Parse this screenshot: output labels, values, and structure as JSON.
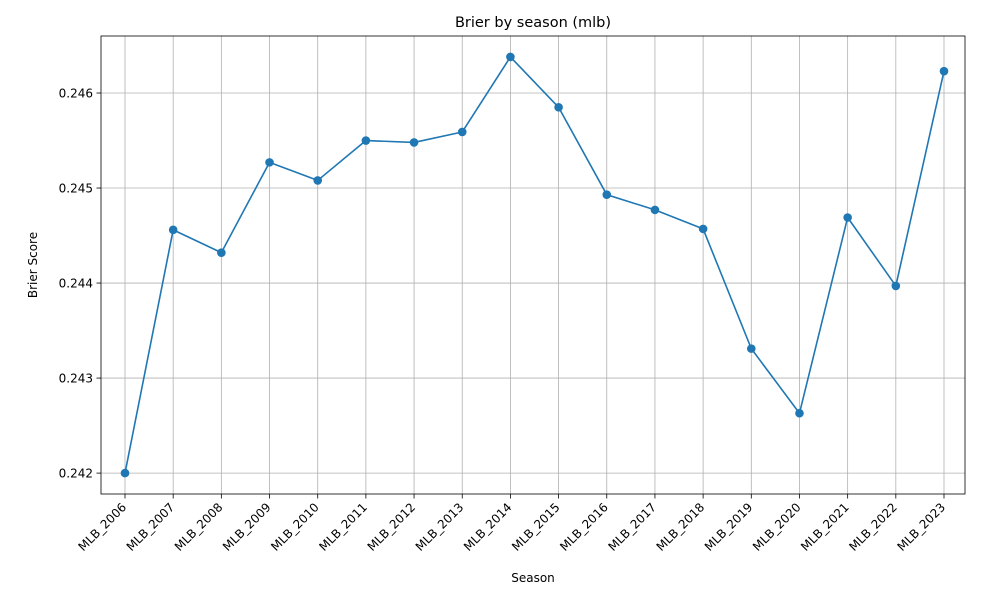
{
  "chart_data": {
    "type": "line",
    "title": "Brier by season (mlb)",
    "xlabel": "Season",
    "ylabel": "Brier Score",
    "categories": [
      "MLB_2006",
      "MLB_2007",
      "MLB_2008",
      "MLB_2009",
      "MLB_2010",
      "MLB_2011",
      "MLB_2012",
      "MLB_2013",
      "MLB_2014",
      "MLB_2015",
      "MLB_2016",
      "MLB_2017",
      "MLB_2018",
      "MLB_2019",
      "MLB_2020",
      "MLB_2021",
      "MLB_2022",
      "MLB_2023"
    ],
    "series": [
      {
        "values": [
          0.242,
          0.24456,
          0.24432,
          0.24527,
          0.24508,
          0.2455,
          0.24548,
          0.24559,
          0.24638,
          0.24585,
          0.24493,
          0.24477,
          0.24457,
          0.24331,
          0.24263,
          0.24469,
          0.24397,
          0.24623
        ],
        "color": "#1f77b4",
        "marker": "circle"
      }
    ],
    "ylim": [
      0.24178,
      0.2466
    ],
    "yticks": [
      "0.242",
      "0.243",
      "0.244",
      "0.245",
      "0.246"
    ],
    "ytick_values": [
      0.242,
      0.243,
      0.244,
      0.245,
      0.246
    ],
    "grid": true,
    "legend": "none"
  }
}
